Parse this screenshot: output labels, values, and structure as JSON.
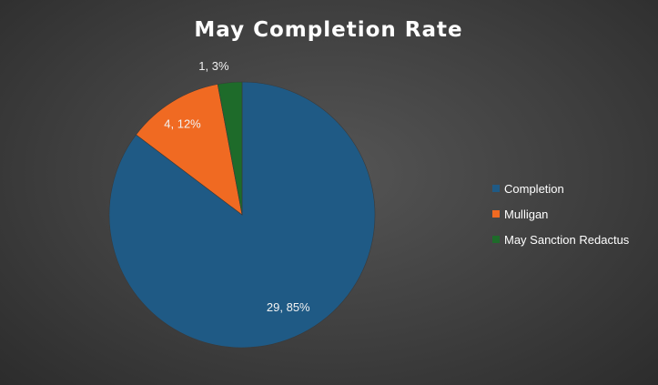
{
  "chart_data": {
    "type": "pie",
    "title": "May Completion Rate",
    "slices": [
      {
        "label": "Completion",
        "value": 29,
        "percent": "85%",
        "color": "#1f5a85"
      },
      {
        "label": "Mulligan",
        "value": 4,
        "percent": "12%",
        "color": "#f06a22"
      },
      {
        "label": "May Sanction Redactus",
        "value": 1,
        "percent": "3%",
        "color": "#1e6b2a"
      }
    ],
    "legend_position": "right",
    "data_labels": [
      "29, 85%",
      "4, 12%",
      "1, 3%"
    ]
  }
}
